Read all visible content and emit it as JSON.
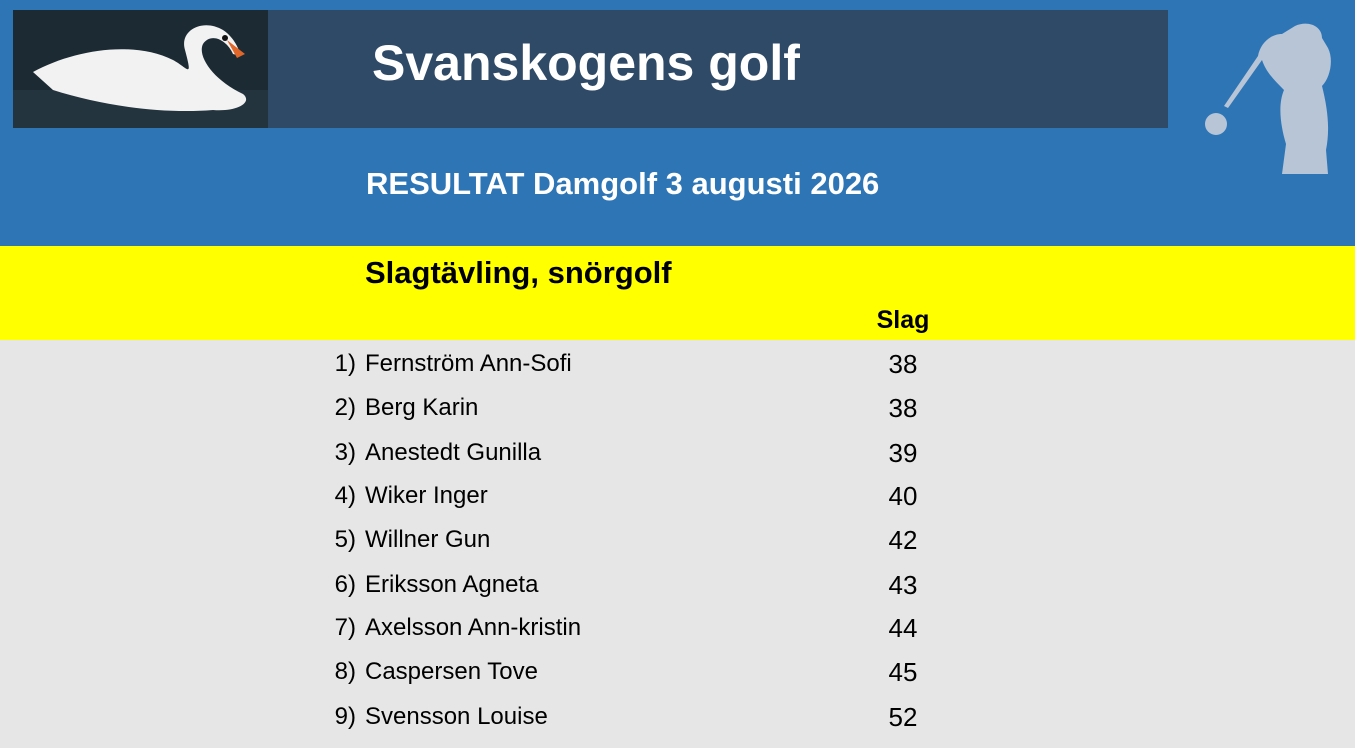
{
  "header": {
    "title": "Svanskogens golf",
    "subtitle": "RESULTAT Damgolf 3 augusti 2026"
  },
  "section": {
    "title": "Slagtävling, snörgolf"
  },
  "table": {
    "column_header": "Slag",
    "rows": [
      [
        "1)",
        "Fernström Ann-Sofi",
        38
      ],
      [
        "2)",
        "Berg Karin",
        38
      ],
      [
        "3)",
        "Anestedt Gunilla",
        39
      ],
      [
        "4)",
        "Wiker Inger",
        40
      ],
      [
        "5)",
        "Willner Gun",
        42
      ],
      [
        "6)",
        "Eriksson Agneta",
        43
      ],
      [
        "7)",
        "Axelsson Ann-kristin",
        44
      ],
      [
        "8)",
        "Caspersen Tove",
        45
      ],
      [
        "9)",
        "Svensson Louise",
        52
      ]
    ]
  }
}
